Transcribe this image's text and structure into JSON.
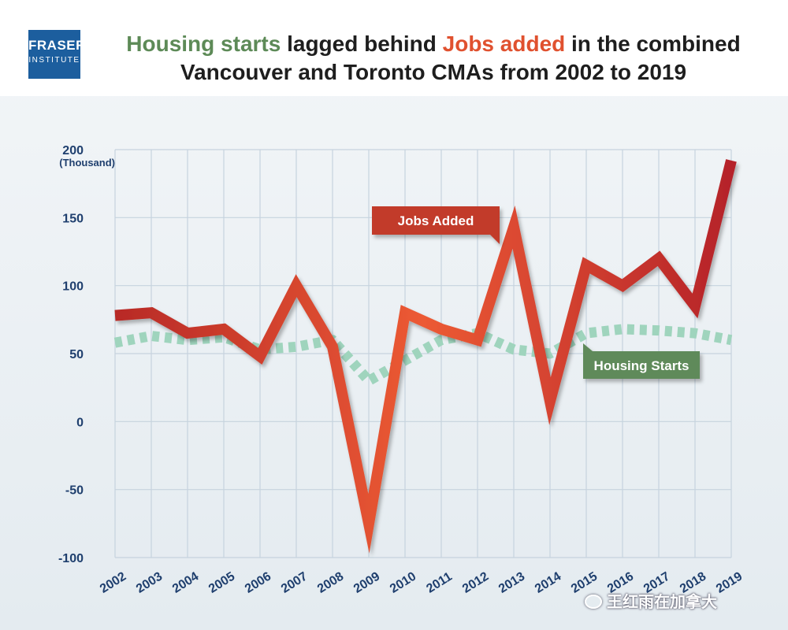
{
  "logo": {
    "line1": "FRASER",
    "line2": "INSTITUTE"
  },
  "title": {
    "line1_part1": "Housing starts",
    "line1_part2": " lagged behind ",
    "line1_part3": "Jobs added",
    "line1_part4": " in the combined",
    "line2": "Vancouver and Toronto CMAs from 2002 to 2019"
  },
  "colors": {
    "jobs": "#e24a2e",
    "jobs_dark": "#b82a27",
    "housing": "#9fd4bd",
    "housing_label_bg": "#5f8a5a",
    "jobs_label_bg": "#c23a2c",
    "axis_text": "#1f3f6e",
    "title_green": "#5d8a57",
    "title_red": "#e0512f"
  },
  "chart_data": {
    "type": "line",
    "title": "Housing starts lagged behind Jobs added in the combined Vancouver and Toronto CMAs from 2002 to 2019",
    "ylabel_unit": "(Thousand)",
    "ylim": [
      -100,
      200
    ],
    "yticks": [
      200,
      150,
      100,
      50,
      0,
      -50,
      -100
    ],
    "ytick_labels": [
      "200",
      "150",
      "100",
      "50",
      "0",
      "-50",
      "-100"
    ],
    "categories": [
      "2002",
      "2003",
      "2004",
      "2005",
      "2006",
      "2007",
      "2008",
      "2009",
      "2010",
      "2011",
      "2012",
      "2013",
      "2014",
      "2015",
      "2016",
      "2017",
      "2018",
      "2019"
    ],
    "series": [
      {
        "name": "Jobs Added",
        "values": [
          78,
          80,
          65,
          68,
          48,
          100,
          55,
          -75,
          80,
          68,
          60,
          143,
          15,
          115,
          100,
          120,
          85,
          192
        ]
      },
      {
        "name": "Housing Starts",
        "values": [
          58,
          63,
          60,
          62,
          53,
          55,
          60,
          30,
          45,
          60,
          65,
          53,
          50,
          65,
          68,
          67,
          65,
          60
        ]
      }
    ],
    "legend": {
      "jobs_label": "Jobs Added",
      "housing_label": "Housing Starts"
    },
    "grid": true
  },
  "watermark": "王红雨在加拿大"
}
